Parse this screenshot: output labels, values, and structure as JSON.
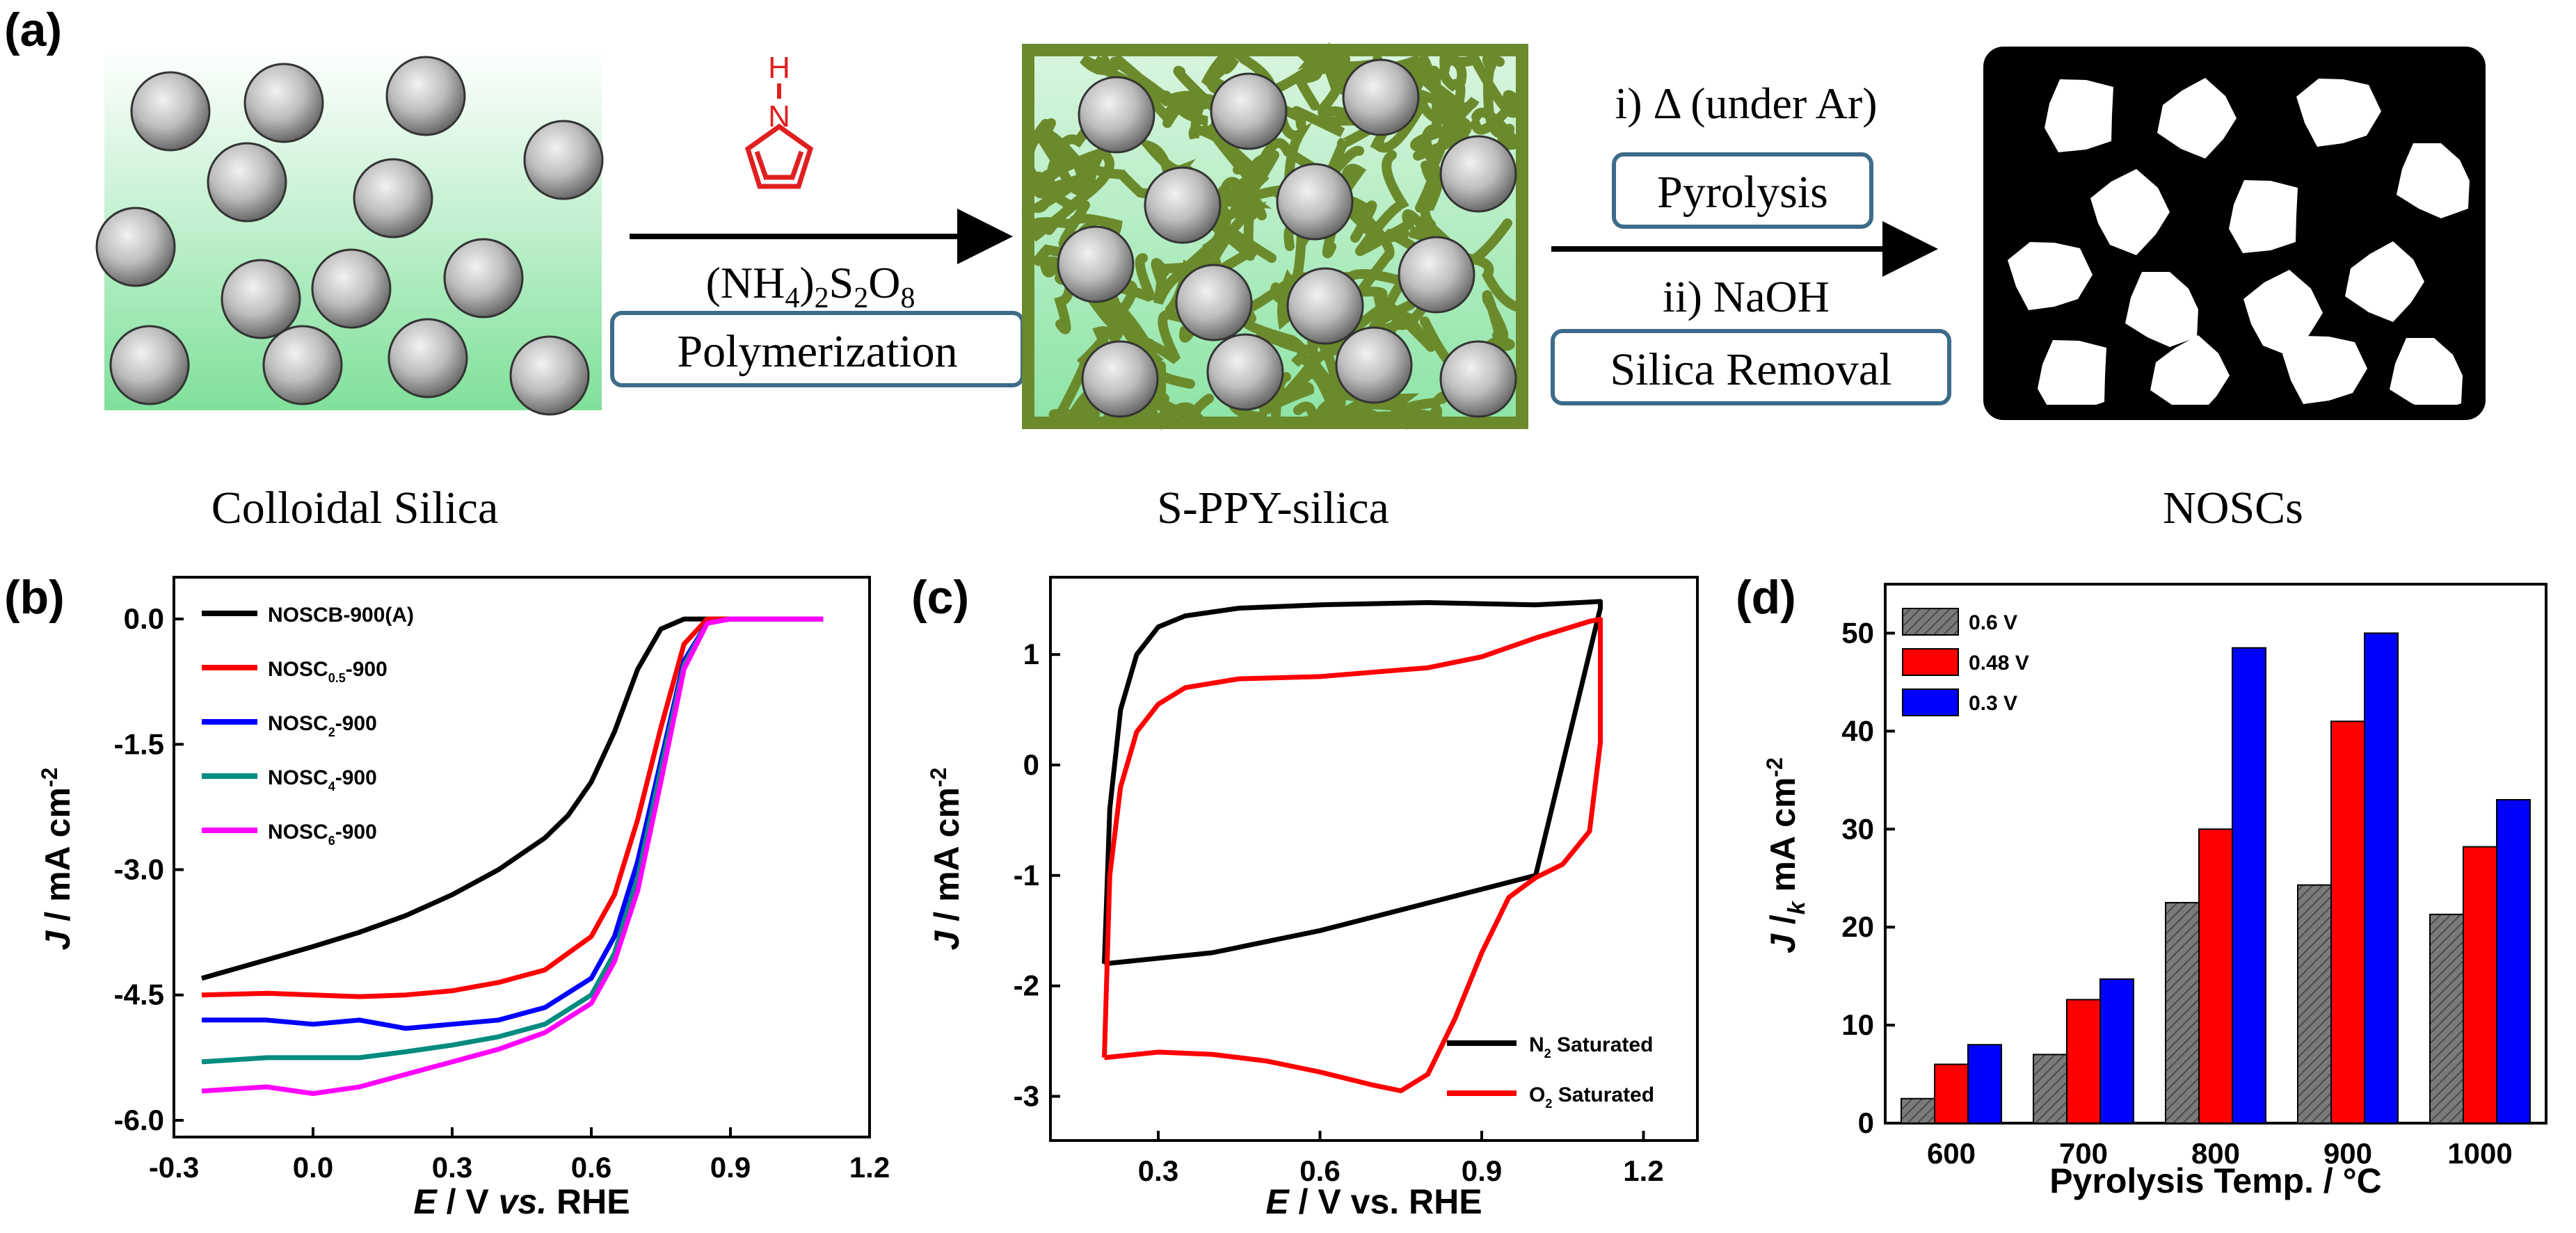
{
  "panel_labels": {
    "a": "(a)",
    "b": "(b)",
    "c": "(c)",
    "d": "(d)"
  },
  "scheme": {
    "stage_labels": [
      "Colloidal Silica",
      "S-PPY-silica",
      "NOSCs"
    ],
    "step1": {
      "pyrrole_h": "H",
      "pyrrole_n": "N",
      "reagent": "(NH4)2S2O8",
      "process": "Polymerization"
    },
    "step2": {
      "line1": "i) Δ (under Ar)",
      "box1": "Pyrolysis",
      "line2": "ii) NaOH",
      "box2": "Silica Removal"
    },
    "colors": {
      "silica_bg": "#8be3a7",
      "ppy": "#6b8a2c",
      "carbon": "#000000",
      "box": "#3d6b8a",
      "pyrrole": "#e02020"
    }
  },
  "chart_data": [
    {
      "id": "b",
      "type": "line",
      "title": "",
      "xlabel": "E / V vs. RHE",
      "ylabel": "J / mA cm-2",
      "xlim": [
        -0.3,
        1.2
      ],
      "ylim": [
        -6.2,
        0.5
      ],
      "xticks": [
        "-0.3",
        "0.0",
        "0.3",
        "0.6",
        "0.9",
        "1.2"
      ],
      "yticks": [
        "0.0",
        "-1.5",
        "-3.0",
        "-4.5",
        "-6.0"
      ],
      "legend": "top-left",
      "series": [
        {
          "name": "NOSCB-900(A)",
          "color": "#000000",
          "x": [
            -0.24,
            -0.1,
            0.0,
            0.1,
            0.2,
            0.3,
            0.4,
            0.5,
            0.55,
            0.6,
            0.65,
            0.7,
            0.75,
            0.8,
            0.85,
            0.9,
            1.1
          ],
          "y": [
            -4.3,
            -4.08,
            -3.92,
            -3.75,
            -3.55,
            -3.3,
            -3.0,
            -2.62,
            -2.35,
            -1.95,
            -1.35,
            -0.6,
            -0.12,
            0.0,
            0.0,
            0.0,
            0.0
          ]
        },
        {
          "name": "NOSC0.5-900",
          "color": "#ff0000",
          "x": [
            -0.24,
            -0.1,
            0.0,
            0.1,
            0.2,
            0.3,
            0.4,
            0.5,
            0.6,
            0.65,
            0.7,
            0.75,
            0.8,
            0.85,
            0.9,
            1.1
          ],
          "y": [
            -4.5,
            -4.48,
            -4.5,
            -4.52,
            -4.5,
            -4.45,
            -4.35,
            -4.2,
            -3.8,
            -3.3,
            -2.4,
            -1.3,
            -0.3,
            0.0,
            0.0,
            0.0
          ]
        },
        {
          "name": "NOSC2-900",
          "color": "#0000ff",
          "x": [
            -0.24,
            -0.1,
            0.0,
            0.1,
            0.2,
            0.3,
            0.4,
            0.5,
            0.6,
            0.65,
            0.7,
            0.75,
            0.8,
            0.85,
            0.9,
            1.1
          ],
          "y": [
            -4.8,
            -4.8,
            -4.85,
            -4.8,
            -4.9,
            -4.85,
            -4.8,
            -4.65,
            -4.3,
            -3.8,
            -2.9,
            -1.7,
            -0.5,
            -0.05,
            0.0,
            0.0
          ]
        },
        {
          "name": "NOSC4-900",
          "color": "#008b80",
          "x": [
            -0.24,
            -0.1,
            0.0,
            0.1,
            0.2,
            0.3,
            0.4,
            0.5,
            0.6,
            0.65,
            0.7,
            0.75,
            0.8,
            0.85,
            0.9,
            1.1
          ],
          "y": [
            -5.3,
            -5.25,
            -5.25,
            -5.25,
            -5.18,
            -5.1,
            -5.0,
            -4.85,
            -4.5,
            -4.0,
            -3.1,
            -1.8,
            -0.55,
            -0.05,
            0.0,
            0.0
          ]
        },
        {
          "name": "NOSC6-900",
          "color": "#ff00ff",
          "x": [
            -0.24,
            -0.1,
            0.0,
            0.1,
            0.2,
            0.3,
            0.4,
            0.5,
            0.6,
            0.65,
            0.7,
            0.75,
            0.8,
            0.85,
            0.9,
            1.1
          ],
          "y": [
            -5.65,
            -5.6,
            -5.68,
            -5.6,
            -5.45,
            -5.3,
            -5.15,
            -4.95,
            -4.6,
            -4.1,
            -3.25,
            -1.95,
            -0.6,
            -0.05,
            0.0,
            0.0
          ]
        }
      ],
      "legend_labels": [
        {
          "base": "NOSCB-900(A)",
          "sub": "",
          "tail": ""
        },
        {
          "base": "NOSC",
          "sub": "0.5",
          "tail": "-900"
        },
        {
          "base": "NOSC",
          "sub": "2",
          "tail": "-900"
        },
        {
          "base": "NOSC",
          "sub": "4",
          "tail": "-900"
        },
        {
          "base": "NOSC",
          "sub": "6",
          "tail": "-900"
        }
      ]
    },
    {
      "id": "c",
      "type": "line",
      "title": "",
      "xlabel": "E / V vs. RHE",
      "ylabel": "J / mA cm-2",
      "xlim": [
        0.1,
        1.3
      ],
      "ylim": [
        -3.4,
        1.7
      ],
      "xticks": [
        "0.3",
        "0.6",
        "0.9",
        "1.2"
      ],
      "yticks": [
        "1",
        "0",
        "-1",
        "-2",
        "-3"
      ],
      "legend": "bottom-right",
      "series": [
        {
          "name": "N2 Saturated",
          "color": "#000000",
          "x": [
            0.2,
            0.21,
            0.23,
            0.26,
            0.3,
            0.35,
            0.45,
            0.6,
            0.8,
            1.0,
            1.12,
            1.12,
            1.0,
            0.8,
            0.6,
            0.4,
            0.2
          ],
          "y": [
            -1.8,
            -0.4,
            0.5,
            1.0,
            1.25,
            1.35,
            1.42,
            1.45,
            1.47,
            1.45,
            1.48,
            1.42,
            -1.0,
            -1.25,
            -1.5,
            -1.7,
            -1.8
          ]
        },
        {
          "name": "O2 Saturated",
          "color": "#ff0000",
          "x": [
            0.2,
            0.21,
            0.23,
            0.26,
            0.3,
            0.35,
            0.45,
            0.6,
            0.8,
            0.9,
            1.0,
            1.1,
            1.12,
            1.12,
            1.1,
            1.05,
            1.0,
            0.95,
            0.9,
            0.85,
            0.8,
            0.75,
            0.7,
            0.6,
            0.5,
            0.4,
            0.3,
            0.2
          ],
          "y": [
            -2.65,
            -1.0,
            -0.2,
            0.3,
            0.55,
            0.7,
            0.78,
            0.8,
            0.88,
            0.98,
            1.15,
            1.3,
            1.32,
            0.2,
            -0.6,
            -0.9,
            -1.02,
            -1.2,
            -1.7,
            -2.3,
            -2.8,
            -2.95,
            -2.9,
            -2.78,
            -2.68,
            -2.62,
            -2.6,
            -2.65
          ]
        }
      ],
      "legend_labels": [
        {
          "base": "N",
          "sub": "2",
          "tail": " Saturated"
        },
        {
          "base": "O",
          "sub": "2",
          "tail": " Saturated"
        }
      ]
    },
    {
      "id": "d",
      "type": "bar",
      "title": "",
      "xlabel": "Pyrolysis Temp. / °C",
      "ylabel": "J /k mA cm-2",
      "ylim": [
        0,
        55
      ],
      "yticks": [
        "0",
        "10",
        "20",
        "30",
        "40",
        "50"
      ],
      "categories": [
        "600",
        "700",
        "800",
        "900",
        "1000"
      ],
      "legend": "top-left",
      "series": [
        {
          "name": "0.6 V",
          "color": "#888888",
          "values": [
            2.5,
            7.0,
            22.5,
            24.3,
            21.3
          ]
        },
        {
          "name": "0.48 V",
          "color": "#ff0000",
          "values": [
            6.0,
            12.6,
            30.0,
            41.0,
            28.2
          ]
        },
        {
          "name": "0.3 V",
          "color": "#0000ff",
          "values": [
            8.0,
            14.7,
            48.5,
            50.0,
            33.0
          ]
        }
      ]
    }
  ]
}
